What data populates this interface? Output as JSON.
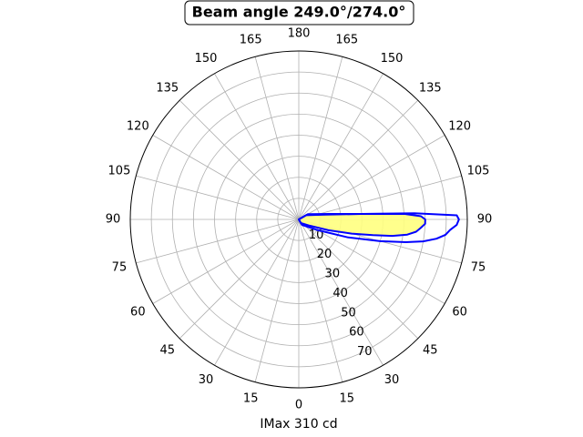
{
  "chart_data": {
    "type": "polar",
    "title": "Beam angle 249.0°/274.0°",
    "xlabel": "IMax 310 cd",
    "thetaticks": [
      0,
      15,
      30,
      45,
      60,
      75,
      90,
      105,
      120,
      135,
      150,
      165,
      180
    ],
    "rlim": [
      0,
      80
    ],
    "rticks": [
      10,
      20,
      30,
      40,
      50,
      60,
      70
    ],
    "grid": true,
    "series": [
      {
        "color": "#0000ff",
        "fill": "#ffff80",
        "x": [
          0,
          30,
          60,
          70,
          75,
          78,
          80,
          82,
          84,
          86,
          88,
          90,
          91.5,
          93,
          95,
          100,
          120
        ],
        "values": [
          0,
          2,
          6,
          15,
          26,
          36,
          45,
          52,
          56,
          58,
          60,
          60,
          58,
          50,
          30,
          13,
          4
        ]
      },
      {
        "color": "#0000ff",
        "x": [
          0,
          30,
          60,
          70,
          75,
          78,
          80,
          82,
          84,
          86,
          88,
          90,
          91.5,
          93,
          95,
          100,
          120
        ],
        "values": [
          0,
          3,
          10,
          25,
          40,
          52,
          60,
          66,
          70,
          72,
          75,
          76,
          75,
          55,
          30,
          15,
          5
        ]
      }
    ]
  }
}
